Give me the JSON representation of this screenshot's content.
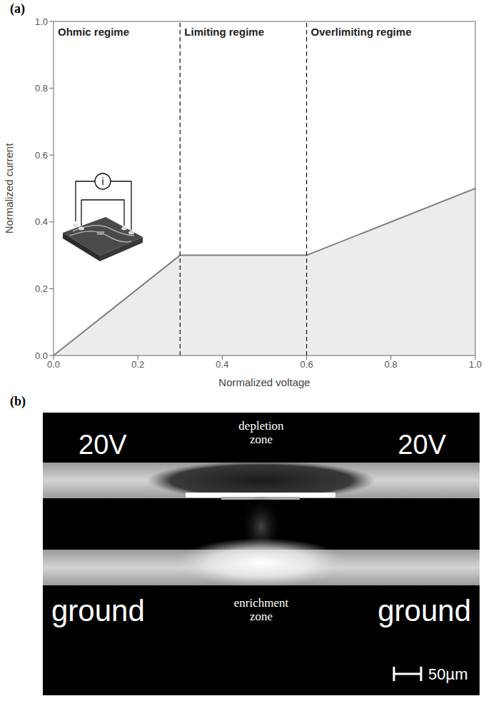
{
  "chart_data": {
    "type": "line",
    "panel": "(a)",
    "x": [
      0,
      0.3,
      0.6,
      1.0
    ],
    "values": [
      0,
      0.3,
      0.3,
      0.5
    ],
    "color": "#808080",
    "xlabel": "Normalized voltage",
    "ylabel": "Normalized current",
    "xlim": [
      0,
      1
    ],
    "ylim": [
      0,
      1
    ],
    "xticks": [
      {
        "value": 0,
        "label": "0.0"
      },
      0.2,
      0.4,
      0.6,
      0.8,
      {
        "value": 1,
        "label": "1.0"
      }
    ],
    "yticks": [
      {
        "value": 0,
        "label": "0.0"
      },
      0.2,
      0.4,
      0.6,
      0.8,
      {
        "value": 1,
        "label": "1.0"
      }
    ],
    "grid": false,
    "regions": [
      {
        "label": "Ohmic regime",
        "from": 0,
        "to": 0.3
      },
      {
        "label": "Limiting regime",
        "from": 0.3,
        "to": 0.6
      },
      {
        "label": "Overlimiting regime",
        "from": 0.6,
        "to": 1
      }
    ],
    "inset_label": "i"
  },
  "image_panel": {
    "panel": "(b)",
    "left_top": "20V",
    "right_top": "20V",
    "left_bottom": "ground",
    "right_bottom": "ground",
    "top_zone": "depletion zone",
    "bottom_zone": "enrichment zone",
    "scale_bar": "50µm"
  }
}
